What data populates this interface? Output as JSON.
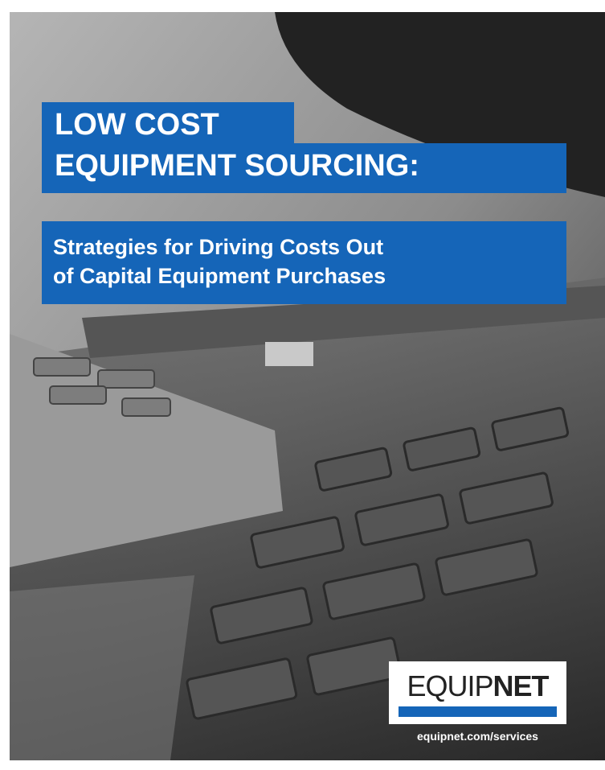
{
  "cover": {
    "title_lines": [
      "LOW COST",
      "EQUIPMENT SOURCING:"
    ],
    "subtitle_lines": [
      "Strategies for Driving Costs Out",
      "of Capital Equipment Purchases"
    ],
    "logo": {
      "light": "EQUIP",
      "bold": "NET"
    },
    "url": "equipnet.com/services"
  }
}
